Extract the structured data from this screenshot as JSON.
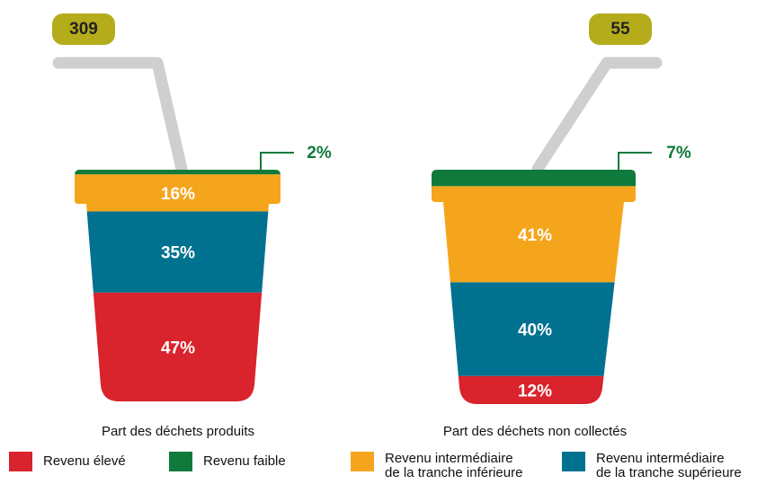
{
  "chart_data": {
    "type": "cup",
    "categories": [
      "Part des déchets produits",
      "Part des déchets non collectés"
    ],
    "totals": [
      309,
      55
    ],
    "series": [
      {
        "name": "Revenu élevé",
        "color": "#d9232d",
        "values": [
          47,
          12
        ],
        "value_labels": [
          "47%",
          "12%"
        ]
      },
      {
        "name": "Revenu faible",
        "color": "#0f7a3c",
        "values": [
          2,
          7
        ],
        "value_labels": [
          "2%",
          "7%"
        ]
      },
      {
        "name": "Revenu intermédiaire\nde la tranche inférieure",
        "color": "#f5a51c",
        "values": [
          16,
          41
        ],
        "value_labels": [
          "16%",
          "41%"
        ]
      },
      {
        "name": "Revenu intermédiaire\nde la tranche supérieure",
        "color": "#00718f",
        "values": [
          35,
          40
        ],
        "value_labels": [
          "35%",
          "40%"
        ]
      }
    ]
  }
}
